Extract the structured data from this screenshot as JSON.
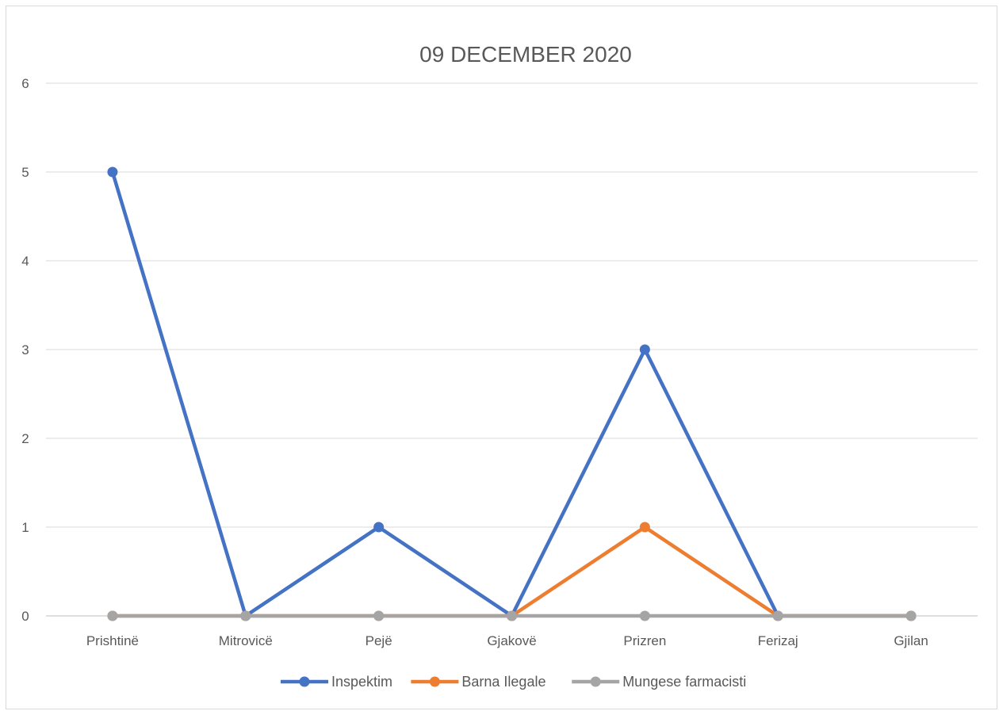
{
  "chart_data": {
    "type": "line",
    "title": "09 DECEMBER 2020",
    "categories": [
      "Prishtinë",
      "Mitrovicë",
      "Pejë",
      "Gjakovë",
      "Prizren",
      "Ferizaj",
      "Gjilan"
    ],
    "series": [
      {
        "name": "Inspektim",
        "color": "#4472c4",
        "values": [
          5,
          0,
          1,
          0,
          3,
          0,
          0
        ]
      },
      {
        "name": "Barna Ilegale",
        "color": "#ed7d31",
        "values": [
          0,
          0,
          0,
          0,
          1,
          0,
          0
        ]
      },
      {
        "name": "Mungese farmacisti",
        "color": "#a5a5a5",
        "values": [
          0,
          0,
          0,
          0,
          0,
          0,
          0
        ]
      }
    ],
    "ylim": [
      0,
      6
    ],
    "yticks": [
      "0",
      "1",
      "2",
      "3",
      "4",
      "5",
      "6"
    ],
    "grid": true,
    "legend_position": "bottom"
  }
}
